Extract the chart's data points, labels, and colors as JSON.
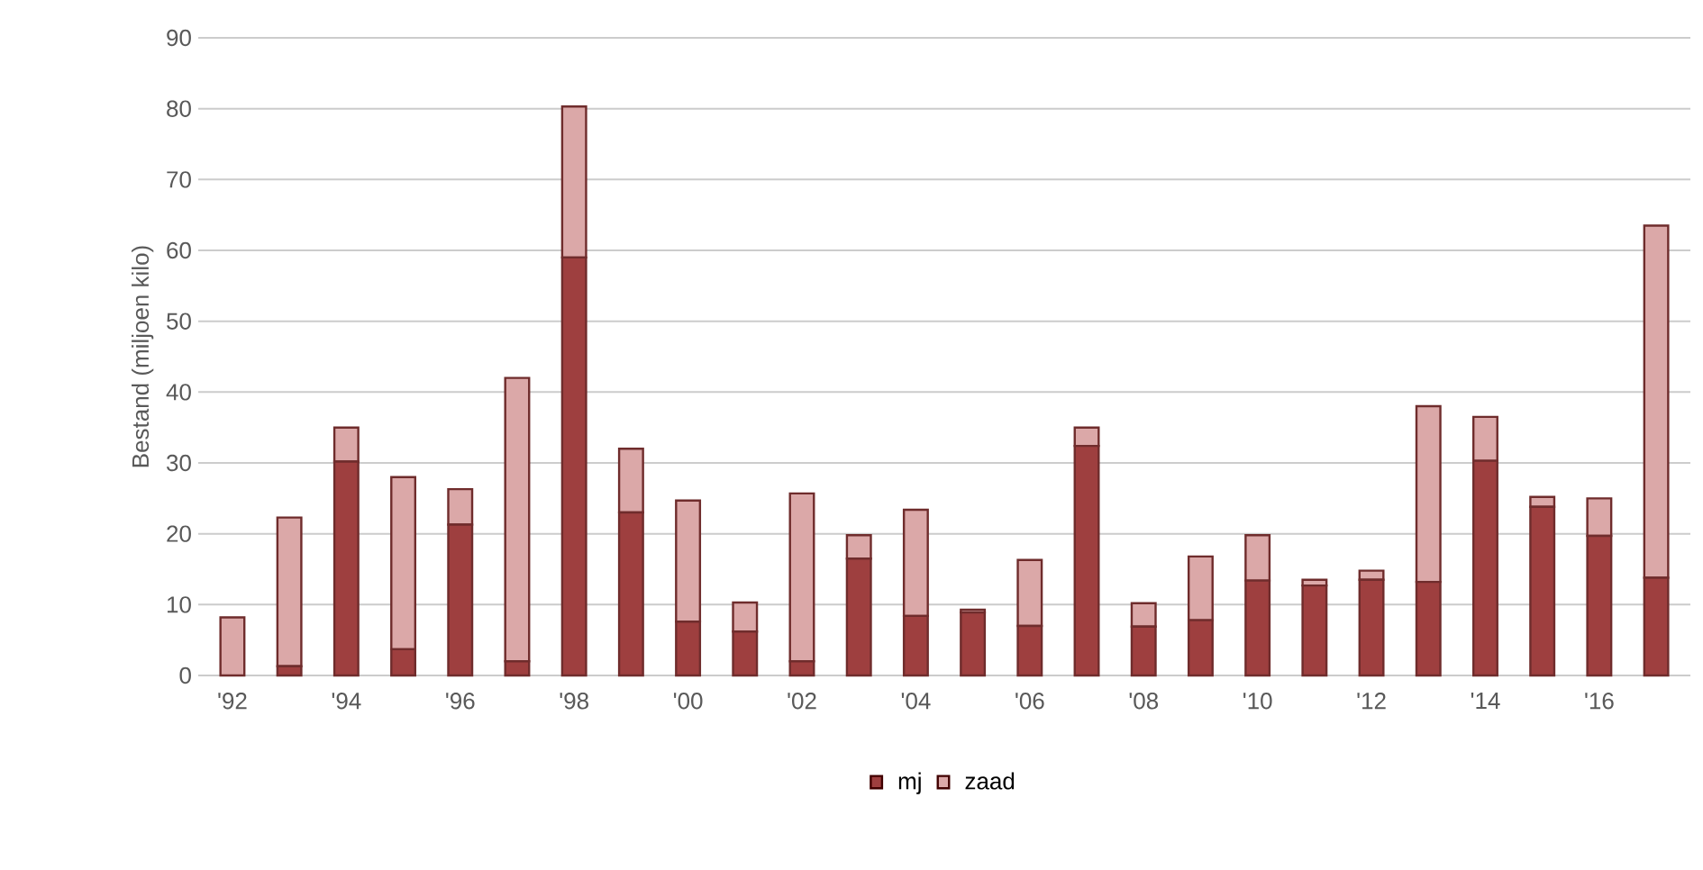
{
  "chart_data": {
    "type": "bar",
    "stacked": true,
    "ylabel": "Bestand (miljoen kilo)",
    "categories": [
      "'92",
      null,
      "'94",
      null,
      "'96",
      null,
      "'98",
      null,
      "'00",
      null,
      "'02",
      null,
      "'04",
      null,
      "'06",
      null,
      "'08",
      null,
      "'10",
      null,
      "'12",
      null,
      "'14",
      null,
      "'16",
      null
    ],
    "series": [
      {
        "name": "mj",
        "color": "#9e3f3f",
        "values": [
          0,
          1.3,
          30.2,
          3.7,
          21.3,
          2,
          59,
          23,
          7.6,
          6.2,
          2,
          16.5,
          8.4,
          8.9,
          7,
          32.4,
          6.9,
          7.8,
          13.4,
          12.7,
          13.5,
          13.2,
          30.3,
          23.8,
          19.7,
          13.8
        ]
      },
      {
        "name": "zaad",
        "color": "#dba8a8",
        "values": [
          8.2,
          21,
          4.8,
          24.3,
          5,
          40,
          21.3,
          9,
          17.1,
          4.1,
          23.7,
          3.3,
          15,
          0.4,
          9.3,
          2.6,
          3.3,
          9,
          6.4,
          0.8,
          1.3,
          24.8,
          6.2,
          1.4,
          5.3,
          49.7
        ]
      }
    ],
    "ylim": [
      0,
      90
    ],
    "yticks": [
      0,
      10,
      20,
      30,
      40,
      50,
      60,
      70,
      80,
      90
    ],
    "grid": "y",
    "legend": "bottom"
  }
}
